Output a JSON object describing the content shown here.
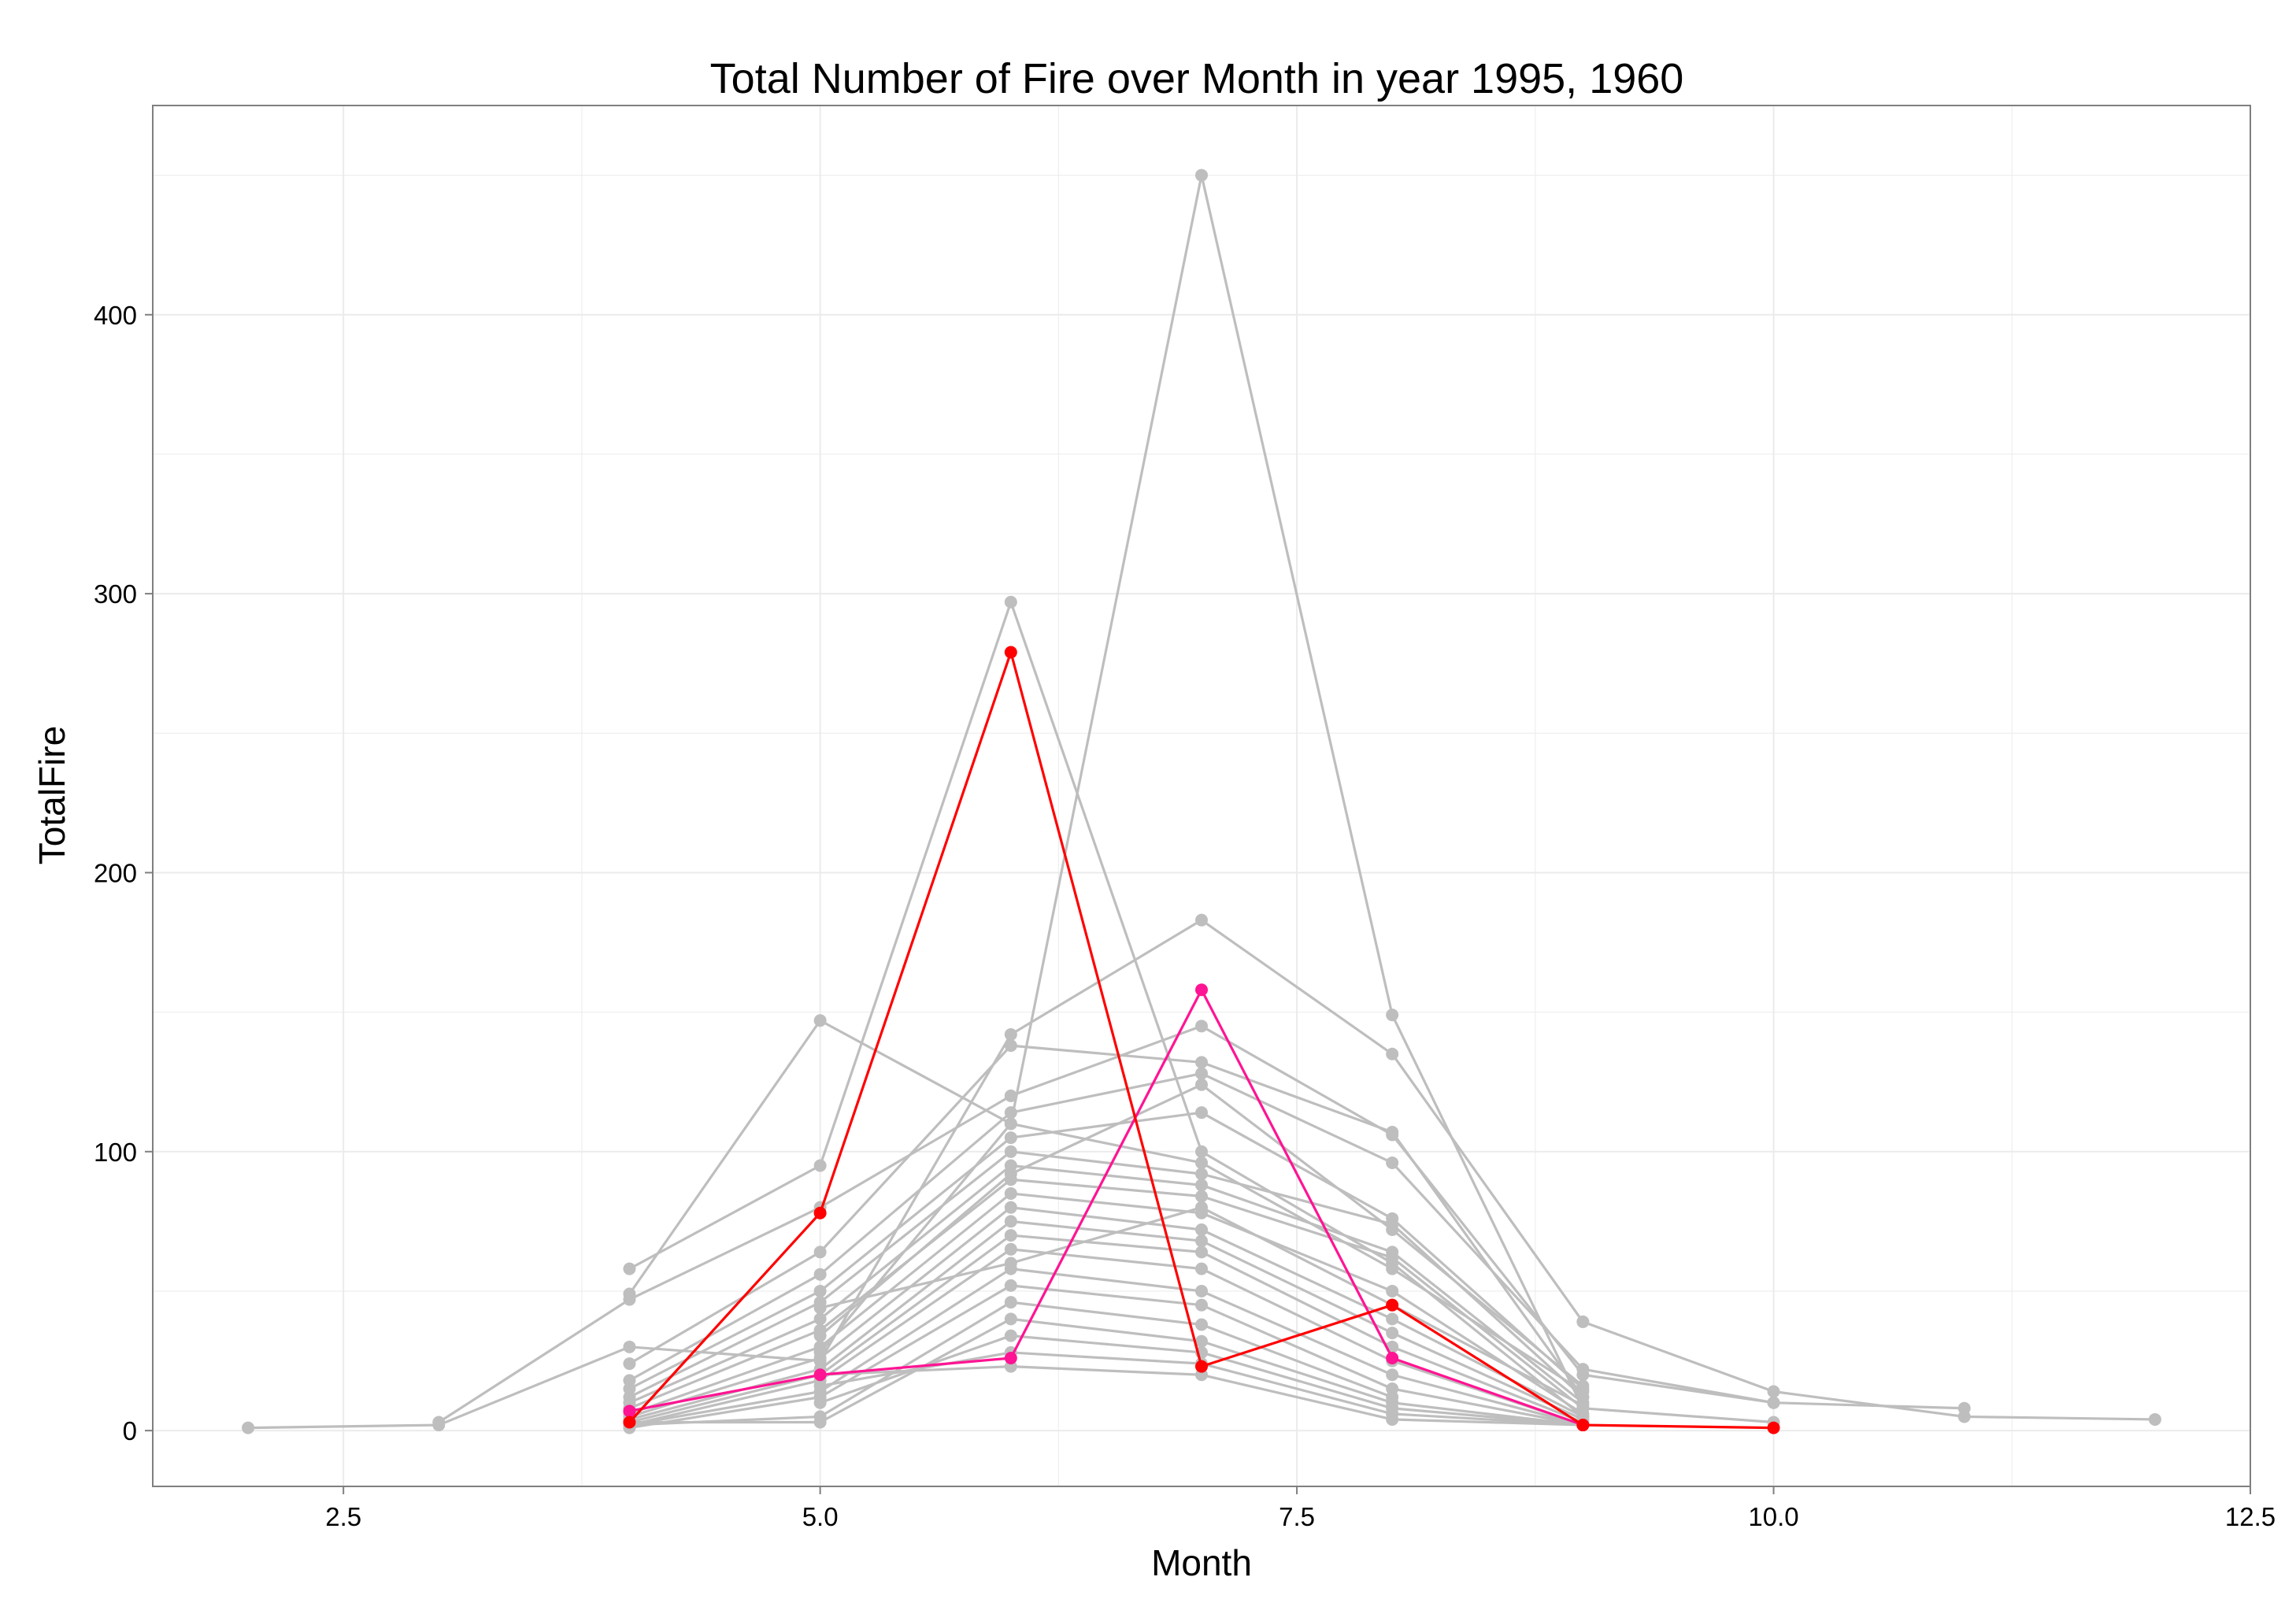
{
  "chart_data": {
    "type": "line",
    "title": "Total Number of Fire over Month in year 1995, 1960",
    "xlabel": "Month",
    "ylabel": "TotalFire",
    "xlim": [
      1.5,
      12.5
    ],
    "ylim": [
      -20,
      475
    ],
    "xticks": [
      "2.5",
      "5.0",
      "7.5",
      "10.0",
      "12.5"
    ],
    "xtick_values": [
      2.5,
      5.0,
      7.5,
      10.0,
      12.5
    ],
    "yticks": [
      "0",
      "100",
      "200",
      "300",
      "400"
    ],
    "ytick_values": [
      0,
      100,
      200,
      300,
      400
    ],
    "grid": true,
    "legend": "none",
    "colors": {
      "background_series": "#bebebe",
      "year_1995": "#ff0000",
      "year_1960": "#ff1493",
      "grid": "#ebebeb",
      "panel_border": "#7f7f7f"
    },
    "series": [
      {
        "color": "#bebebe",
        "x": [
          4,
          5,
          6,
          7,
          8,
          9
        ],
        "y": [
          58,
          95,
          297,
          100,
          60,
          5
        ]
      },
      {
        "color": "#bebebe",
        "x": [
          4,
          5,
          6,
          7,
          8,
          9,
          10
        ],
        "y": [
          49,
          147,
          110,
          450,
          149,
          8,
          3
        ]
      },
      {
        "color": "#bebebe",
        "x": [
          2,
          3,
          4,
          5,
          6,
          7,
          8,
          9,
          10,
          11,
          12
        ],
        "y": [
          1,
          2,
          30,
          25,
          142,
          183,
          135,
          39,
          14,
          5,
          4
        ]
      },
      {
        "color": "#bebebe",
        "x": [
          3,
          4,
          5,
          6,
          7,
          8,
          9,
          10
        ],
        "y": [
          3,
          47,
          80,
          120,
          145,
          106,
          20,
          10
        ]
      },
      {
        "color": "#bebebe",
        "x": [
          4,
          5,
          6,
          7,
          8,
          9
        ],
        "y": [
          24,
          64,
          138,
          132,
          107,
          12
        ]
      },
      {
        "color": "#bebebe",
        "x": [
          4,
          5,
          6,
          7,
          8,
          9,
          10,
          11
        ],
        "y": [
          18,
          56,
          114,
          128,
          96,
          22,
          10,
          8
        ]
      },
      {
        "color": "#bebebe",
        "x": [
          4,
          5,
          6,
          7,
          8,
          9
        ],
        "y": [
          15,
          50,
          105,
          114,
          76,
          15
        ]
      },
      {
        "color": "#bebebe",
        "x": [
          4,
          5,
          6,
          7,
          8,
          9
        ],
        "y": [
          12,
          46,
          100,
          92,
          74,
          12
        ]
      },
      {
        "color": "#bebebe",
        "x": [
          4,
          5,
          6,
          7,
          8,
          9
        ],
        "y": [
          10,
          40,
          95,
          88,
          64,
          10
        ]
      },
      {
        "color": "#bebebe",
        "x": [
          4,
          5,
          6,
          7,
          8,
          9
        ],
        "y": [
          8,
          36,
          90,
          84,
          62,
          8
        ]
      },
      {
        "color": "#bebebe",
        "x": [
          4,
          5,
          6,
          7,
          8,
          9
        ],
        "y": [
          6,
          30,
          85,
          78,
          50,
          6
        ]
      },
      {
        "color": "#bebebe",
        "x": [
          4,
          5,
          6,
          7,
          8,
          9
        ],
        "y": [
          5,
          26,
          80,
          72,
          40,
          5
        ]
      },
      {
        "color": "#bebebe",
        "x": [
          4,
          5,
          6,
          7,
          8,
          9
        ],
        "y": [
          4,
          22,
          75,
          68,
          35,
          4
        ]
      },
      {
        "color": "#bebebe",
        "x": [
          4,
          5,
          6,
          7,
          8,
          9
        ],
        "y": [
          3,
          20,
          70,
          64,
          30,
          3
        ]
      },
      {
        "color": "#bebebe",
        "x": [
          4,
          5,
          6,
          7,
          8,
          9
        ],
        "y": [
          2,
          18,
          65,
          58,
          25,
          2
        ]
      },
      {
        "color": "#bebebe",
        "x": [
          4,
          5,
          6,
          7,
          8,
          9
        ],
        "y": [
          2,
          14,
          58,
          50,
          20,
          2
        ]
      },
      {
        "color": "#bebebe",
        "x": [
          4,
          5,
          6,
          7,
          8,
          9
        ],
        "y": [
          1,
          12,
          52,
          45,
          15,
          2
        ]
      },
      {
        "color": "#bebebe",
        "x": [
          4,
          5,
          6,
          7,
          8
        ],
        "y": [
          2,
          5,
          46,
          38,
          12
        ]
      },
      {
        "color": "#bebebe",
        "x": [
          4,
          5,
          6,
          7,
          8,
          9
        ],
        "y": [
          3,
          3,
          40,
          32,
          10,
          2
        ]
      },
      {
        "color": "#bebebe",
        "x": [
          5,
          6,
          7,
          8,
          9
        ],
        "y": [
          10,
          34,
          28,
          8,
          2
        ]
      },
      {
        "color": "#bebebe",
        "x": [
          5,
          6,
          7,
          8,
          9
        ],
        "y": [
          16,
          28,
          24,
          6,
          2
        ]
      },
      {
        "color": "#bebebe",
        "x": [
          5,
          6,
          7,
          8,
          9
        ],
        "y": [
          20,
          23,
          20,
          4,
          2
        ]
      },
      {
        "color": "#bebebe",
        "x": [
          5,
          6,
          7,
          8,
          9
        ],
        "y": [
          28,
          110,
          96,
          58,
          14
        ]
      },
      {
        "color": "#bebebe",
        "x": [
          5,
          6,
          7,
          8,
          9
        ],
        "y": [
          34,
          92,
          124,
          72,
          16
        ]
      },
      {
        "color": "#bebebe",
        "x": [
          5,
          6,
          7,
          8,
          9
        ],
        "y": [
          44,
          60,
          80,
          45,
          9
        ]
      },
      {
        "color": "#ff1493",
        "name": "1960",
        "x": [
          4,
          5,
          6,
          7,
          8,
          9
        ],
        "y": [
          7,
          20,
          26,
          158,
          26,
          2
        ]
      },
      {
        "color": "#ff0000",
        "name": "1995",
        "x": [
          4,
          5,
          6,
          7,
          8,
          9,
          10
        ],
        "y": [
          3,
          78,
          279,
          23,
          45,
          2,
          1
        ]
      }
    ]
  }
}
